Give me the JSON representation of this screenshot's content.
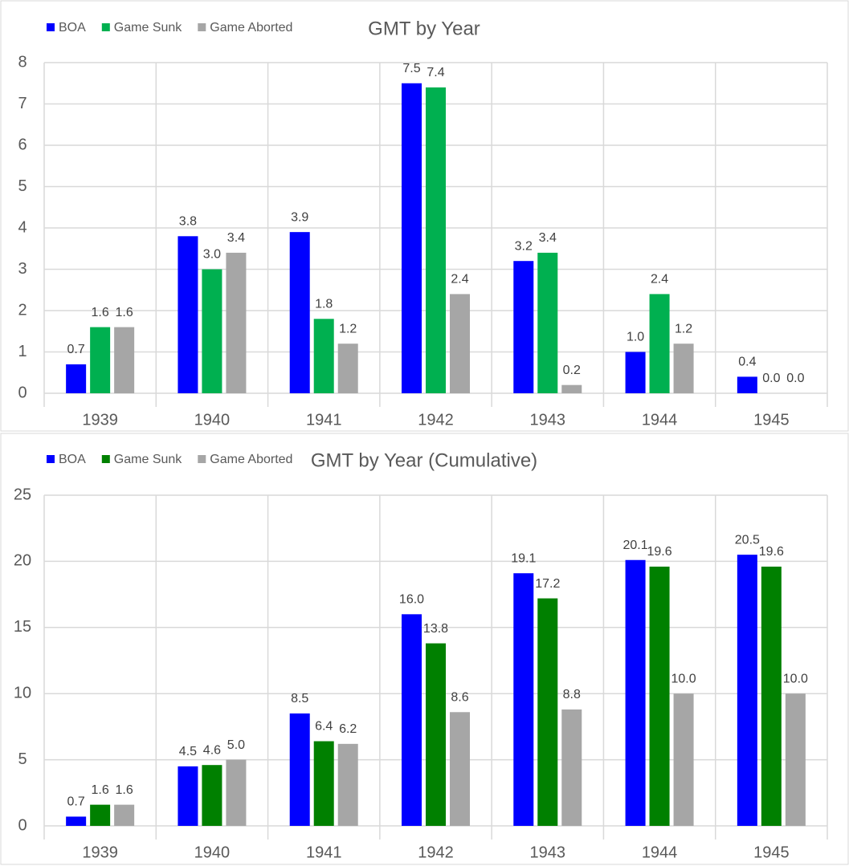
{
  "chart_data": [
    {
      "type": "bar",
      "title": "GMT by Year",
      "categories": [
        "1939",
        "1940",
        "1941",
        "1942",
        "1943",
        "1944",
        "1945"
      ],
      "series": [
        {
          "name": "BOA",
          "color": "#0000ff",
          "values": [
            0.7,
            3.8,
            3.9,
            7.5,
            3.2,
            1.0,
            0.4
          ],
          "value_labels": [
            "0.7",
            "3.8",
            "3.9",
            "7.5",
            "3.2",
            "1.0",
            "0.4"
          ]
        },
        {
          "name": "Game Sunk",
          "color": "#00b050",
          "values": [
            1.6,
            3.0,
            1.8,
            7.4,
            3.4,
            2.4,
            0.0
          ],
          "value_labels": [
            "1.6",
            "3.0",
            "1.8",
            "7.4",
            "3.4",
            "2.4",
            "0.0"
          ]
        },
        {
          "name": "Game Aborted",
          "color": "#a6a6a6",
          "values": [
            1.6,
            3.4,
            1.2,
            2.4,
            0.2,
            1.2,
            0.0
          ],
          "value_labels": [
            "1.6",
            "3.4",
            "1.2",
            "2.4",
            "0.2",
            "1.2",
            "0.0"
          ]
        }
      ],
      "ylim": [
        0,
        8
      ],
      "yticks": [
        0,
        1,
        2,
        3,
        4,
        5,
        6,
        7,
        8
      ],
      "grid": true,
      "legend": "top-left"
    },
    {
      "type": "bar",
      "title": "GMT by Year (Cumulative)",
      "categories": [
        "1939",
        "1940",
        "1941",
        "1942",
        "1943",
        "1944",
        "1945"
      ],
      "series": [
        {
          "name": "BOA",
          "color": "#0000ff",
          "values": [
            0.7,
            4.5,
            8.5,
            16.0,
            19.1,
            20.1,
            20.5
          ],
          "value_labels": [
            "0.7",
            "4.5",
            "8.5",
            "16.0",
            "19.1",
            "20.1",
            "20.5"
          ]
        },
        {
          "name": "Game Sunk",
          "color": "#008000",
          "values": [
            1.6,
            4.6,
            6.4,
            13.8,
            17.2,
            19.6,
            19.6
          ],
          "value_labels": [
            "1.6",
            "4.6",
            "6.4",
            "13.8",
            "17.2",
            "19.6",
            "19.6"
          ]
        },
        {
          "name": "Game Aborted",
          "color": "#a6a6a6",
          "values": [
            1.6,
            5.0,
            6.2,
            8.6,
            8.8,
            10.0,
            10.0
          ],
          "value_labels": [
            "1.6",
            "5.0",
            "6.2",
            "8.6",
            "8.8",
            "10.0",
            "10.0"
          ]
        }
      ],
      "ylim": [
        0,
        25
      ],
      "yticks": [
        0,
        5,
        10,
        15,
        20,
        25
      ],
      "grid": true,
      "legend": "top-left"
    }
  ]
}
